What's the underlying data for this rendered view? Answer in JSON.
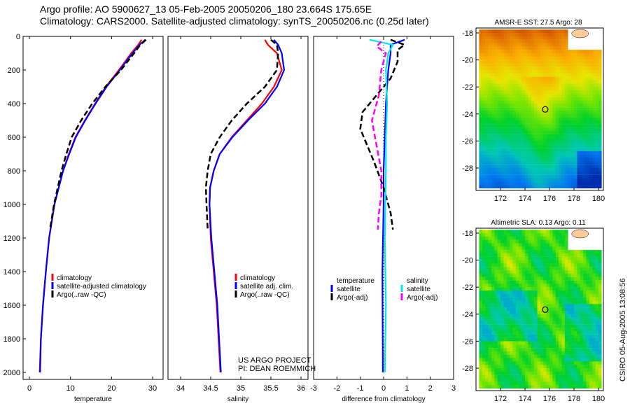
{
  "title_lines": [
    "Argo profile: AO 5900627_13 05-Feb-2005 20050206_180 23.664S 175.65E",
    "Climatology: CARS2000. Satellite-adjusted climatology: synTS_20050206.nc (0.25d later)"
  ],
  "side_label": "CSIRO 05-Aug-2005 13:08:56",
  "project_lines": [
    "US ARGO PROJECT",
    "PI: DEAN ROEMMICH"
  ],
  "colors": {
    "clim": "#ff0000",
    "sat": "#0000ff",
    "argo": "#000000",
    "sal_sat": "#00e5ee",
    "sal_argo": "#ff00ff"
  },
  "chart_data": [
    {
      "type": "line",
      "name": "temperature-profile",
      "xlabel": "temperature",
      "ylabel": "",
      "xlim": [
        -2,
        31
      ],
      "ylim": [
        2000,
        0
      ],
      "xticks": [
        0,
        10,
        20,
        30
      ],
      "yticks": [
        0,
        200,
        400,
        600,
        800,
        1000,
        1200,
        1400,
        1600,
        1800,
        2000
      ],
      "legend": [
        "climatology",
        "satellite-adjusted climatology",
        "Argo(..raw -QC)"
      ],
      "series": [
        {
          "name": "climatology",
          "color": "#ff0000",
          "dash": false,
          "points": [
            [
              20,
              27.3
            ],
            [
              50,
              26.5
            ],
            [
              100,
              24.8
            ],
            [
              200,
              21.8
            ],
            [
              300,
              18.6
            ],
            [
              400,
              16
            ],
            [
              500,
              13.5
            ],
            [
              600,
              11.2
            ],
            [
              700,
              9.6
            ],
            [
              800,
              8.2
            ],
            [
              1000,
              6.1
            ],
            [
              1200,
              4.8
            ],
            [
              1400,
              4
            ],
            [
              1600,
              3.3
            ],
            [
              1800,
              2.8
            ],
            [
              2000,
              2.5
            ]
          ]
        },
        {
          "name": "satellite-adjusted climatology",
          "color": "#0000ff",
          "dash": false,
          "points": [
            [
              20,
              28.2
            ],
            [
              50,
              26.8
            ],
            [
              100,
              25.1
            ],
            [
              200,
              22
            ],
            [
              300,
              18.8
            ],
            [
              400,
              16.1
            ],
            [
              500,
              13.6
            ],
            [
              600,
              11.3
            ],
            [
              700,
              9.7
            ],
            [
              800,
              8.2
            ],
            [
              1000,
              6.1
            ],
            [
              1200,
              4.8
            ],
            [
              1400,
              4
            ],
            [
              1600,
              3.3
            ],
            [
              1800,
              2.8
            ],
            [
              2000,
              2.6
            ]
          ]
        },
        {
          "name": "Argo(..raw -QC)",
          "color": "#000000",
          "dash": true,
          "points": [
            [
              20,
              28.4
            ],
            [
              50,
              27
            ],
            [
              100,
              25.5
            ],
            [
              200,
              22.3
            ],
            [
              300,
              18.5
            ],
            [
              400,
              15.3
            ],
            [
              500,
              12.6
            ],
            [
              600,
              10.3
            ],
            [
              700,
              9
            ],
            [
              800,
              7.8
            ],
            [
              1000,
              6
            ],
            [
              1150,
              5
            ]
          ]
        }
      ]
    },
    {
      "type": "line",
      "name": "salinity-profile",
      "xlabel": "salinity",
      "xlim": [
        33.8,
        36.1
      ],
      "ylim": [
        2000,
        0
      ],
      "xticks": [
        34,
        34.5,
        35,
        35.5,
        36
      ],
      "legend": [
        "climatology",
        "satellite adj. clim.",
        "Argo(..raw -QC)"
      ],
      "series": [
        {
          "name": "climatology",
          "color": "#ff0000",
          "dash": false,
          "points": [
            [
              20,
              35.4
            ],
            [
              50,
              35.45
            ],
            [
              100,
              35.6
            ],
            [
              200,
              35.68
            ],
            [
              300,
              35.55
            ],
            [
              400,
              35.35
            ],
            [
              500,
              35.1
            ],
            [
              600,
              34.85
            ],
            [
              700,
              34.65
            ],
            [
              800,
              34.55
            ],
            [
              900,
              34.49
            ],
            [
              1000,
              34.48
            ],
            [
              1200,
              34.5
            ],
            [
              1400,
              34.55
            ],
            [
              1600,
              34.6
            ],
            [
              1800,
              34.63
            ],
            [
              2000,
              34.66
            ]
          ]
        },
        {
          "name": "satellite adj. clim.",
          "color": "#0000ff",
          "dash": false,
          "points": [
            [
              20,
              35.55
            ],
            [
              50,
              35.62
            ],
            [
              100,
              35.68
            ],
            [
              200,
              35.72
            ],
            [
              300,
              35.6
            ],
            [
              400,
              35.4
            ],
            [
              500,
              35.12
            ],
            [
              600,
              34.86
            ],
            [
              700,
              34.65
            ],
            [
              800,
              34.55
            ],
            [
              900,
              34.49
            ],
            [
              1000,
              34.48
            ],
            [
              1200,
              34.51
            ],
            [
              1400,
              34.56
            ],
            [
              1600,
              34.61
            ],
            [
              1800,
              34.64
            ],
            [
              2000,
              34.67
            ]
          ]
        },
        {
          "name": "Argo(..raw -QC)",
          "color": "#000000",
          "dash": true,
          "points": [
            [
              20,
              35.5
            ],
            [
              50,
              35.6
            ],
            [
              100,
              35.62
            ],
            [
              200,
              35.6
            ],
            [
              300,
              35.4
            ],
            [
              400,
              35.1
            ],
            [
              500,
              34.85
            ],
            [
              600,
              34.65
            ],
            [
              700,
              34.5
            ],
            [
              800,
              34.45
            ],
            [
              900,
              34.42
            ],
            [
              1000,
              34.43
            ],
            [
              1150,
              34.45
            ]
          ]
        }
      ]
    },
    {
      "type": "line",
      "name": "difference-profile",
      "xlabel": "difference from climatology",
      "xlim": [
        -3,
        3
      ],
      "ylim": [
        2000,
        0
      ],
      "xticks": [
        -3,
        -2,
        -1,
        0,
        1,
        2,
        3
      ],
      "legend_temperature": {
        "heading": "temperature",
        "items": [
          "satellite",
          "Argo(-adj)"
        ]
      },
      "legend_salinity": {
        "heading": "salinity",
        "items": [
          "satellite",
          "Argo(-adj)"
        ]
      },
      "series": [
        {
          "name": "temperature satellite",
          "color": "#0000ff",
          "dash": false,
          "points": [
            [
              20,
              0.9
            ],
            [
              50,
              0.3
            ],
            [
              100,
              0.3
            ],
            [
              200,
              0.2
            ],
            [
              400,
              0.1
            ],
            [
              600,
              0.05
            ],
            [
              800,
              0
            ],
            [
              1000,
              0
            ],
            [
              1400,
              -0.05
            ],
            [
              2000,
              -0.03
            ]
          ]
        },
        {
          "name": "temperature Argo(-adj)",
          "color": "#000000",
          "dash": true,
          "points": [
            [
              20,
              0.3
            ],
            [
              50,
              0.9
            ],
            [
              80,
              0.6
            ],
            [
              150,
              0.6
            ],
            [
              250,
              0.3
            ],
            [
              350,
              -0.3
            ],
            [
              450,
              -0.9
            ],
            [
              550,
              -1
            ],
            [
              650,
              -0.7
            ],
            [
              750,
              -0.4
            ],
            [
              900,
              0
            ],
            [
              1050,
              0.3
            ],
            [
              1150,
              0.4
            ]
          ]
        },
        {
          "name": "salinity satellite",
          "color": "#00e5ee",
          "dash": false,
          "points": [
            [
              20,
              -0.6
            ],
            [
              50,
              0.4
            ],
            [
              100,
              0.2
            ],
            [
              200,
              0.1
            ],
            [
              400,
              0.15
            ],
            [
              600,
              0.1
            ],
            [
              800,
              0.1
            ],
            [
              1200,
              0.05
            ],
            [
              1600,
              0.1
            ],
            [
              2000,
              0.05
            ]
          ]
        },
        {
          "name": "salinity Argo(-adj)",
          "color": "#ff00ff",
          "dash": true,
          "points": [
            [
              30,
              -0.1
            ],
            [
              60,
              -0.3
            ],
            [
              100,
              0.1
            ],
            [
              200,
              -0.1
            ],
            [
              350,
              -0.2
            ],
            [
              500,
              -0.5
            ],
            [
              650,
              -0.3
            ],
            [
              800,
              -0.1
            ],
            [
              950,
              -0.1
            ],
            [
              1050,
              -0.2
            ],
            [
              1150,
              -0.25
            ]
          ]
        }
      ]
    },
    {
      "type": "heatmap",
      "name": "sst-map",
      "title": "AMSR-E SST: 27.5 Argo: 28",
      "xlim": [
        170.2,
        181.2
      ],
      "ylim": [
        -29.7,
        -17.7
      ],
      "xticks": [
        172,
        174,
        176,
        178,
        180
      ],
      "yticks": [
        -18,
        -20,
        -22,
        -24,
        -26,
        -28
      ],
      "marker": [
        175.65,
        -23.664
      ]
    },
    {
      "type": "heatmap",
      "name": "sla-map",
      "title": "Altimetric SLA: 0.13 Argo: 0.11",
      "xlim": [
        170.2,
        181.2
      ],
      "ylim": [
        -29.7,
        -17.7
      ],
      "xticks": [
        172,
        174,
        176,
        178,
        180
      ],
      "yticks": [
        -18,
        -20,
        -22,
        -24,
        -26,
        -28
      ],
      "marker": [
        175.65,
        -23.664
      ]
    }
  ]
}
